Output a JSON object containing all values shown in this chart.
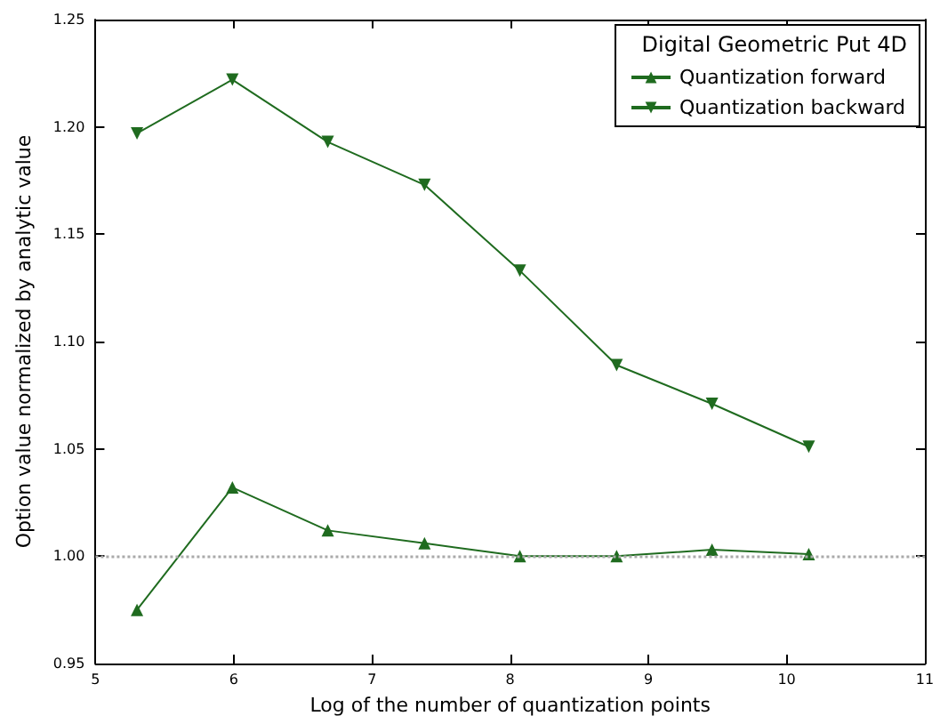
{
  "chart_data": {
    "type": "line",
    "xlabel": "Log of the number of quantization points",
    "ylabel": "Option value normalized by analytic value",
    "legend_title": "Digital Geometric Put 4D",
    "x": [
      5.3,
      5.99,
      6.68,
      7.38,
      8.07,
      8.77,
      9.46,
      10.16
    ],
    "series": [
      {
        "name": "Quantization forward",
        "color": "#1f6b1f",
        "marker": "triangle",
        "values": [
          0.975,
          1.032,
          1.012,
          1.006,
          1.0,
          1.0,
          1.003,
          1.001
        ]
      },
      {
        "name": "Quantization backward",
        "color": "#1f6b1f",
        "marker": "triangle-down",
        "values": [
          1.197,
          1.222,
          1.193,
          1.173,
          1.133,
          1.089,
          1.071,
          1.051
        ]
      }
    ],
    "xlim": [
      5,
      11
    ],
    "xticks": [
      5,
      6,
      7,
      8,
      9,
      10,
      11
    ],
    "ylim": [
      0.95,
      1.25
    ],
    "yticks": [
      0.95,
      {
        "value": 1.0,
        "label": "1.00"
      },
      1.05,
      {
        "value": 1.1,
        "label": "1.10"
      },
      1.15,
      {
        "value": 1.2,
        "label": "1.20"
      },
      1.25
    ],
    "ref_lines": [
      {
        "axis": "y",
        "value": 1.0,
        "color": "#aaaaaa",
        "line_style": "dotted"
      }
    ],
    "grid": false,
    "legend": "top right",
    "line_style": "solid"
  }
}
